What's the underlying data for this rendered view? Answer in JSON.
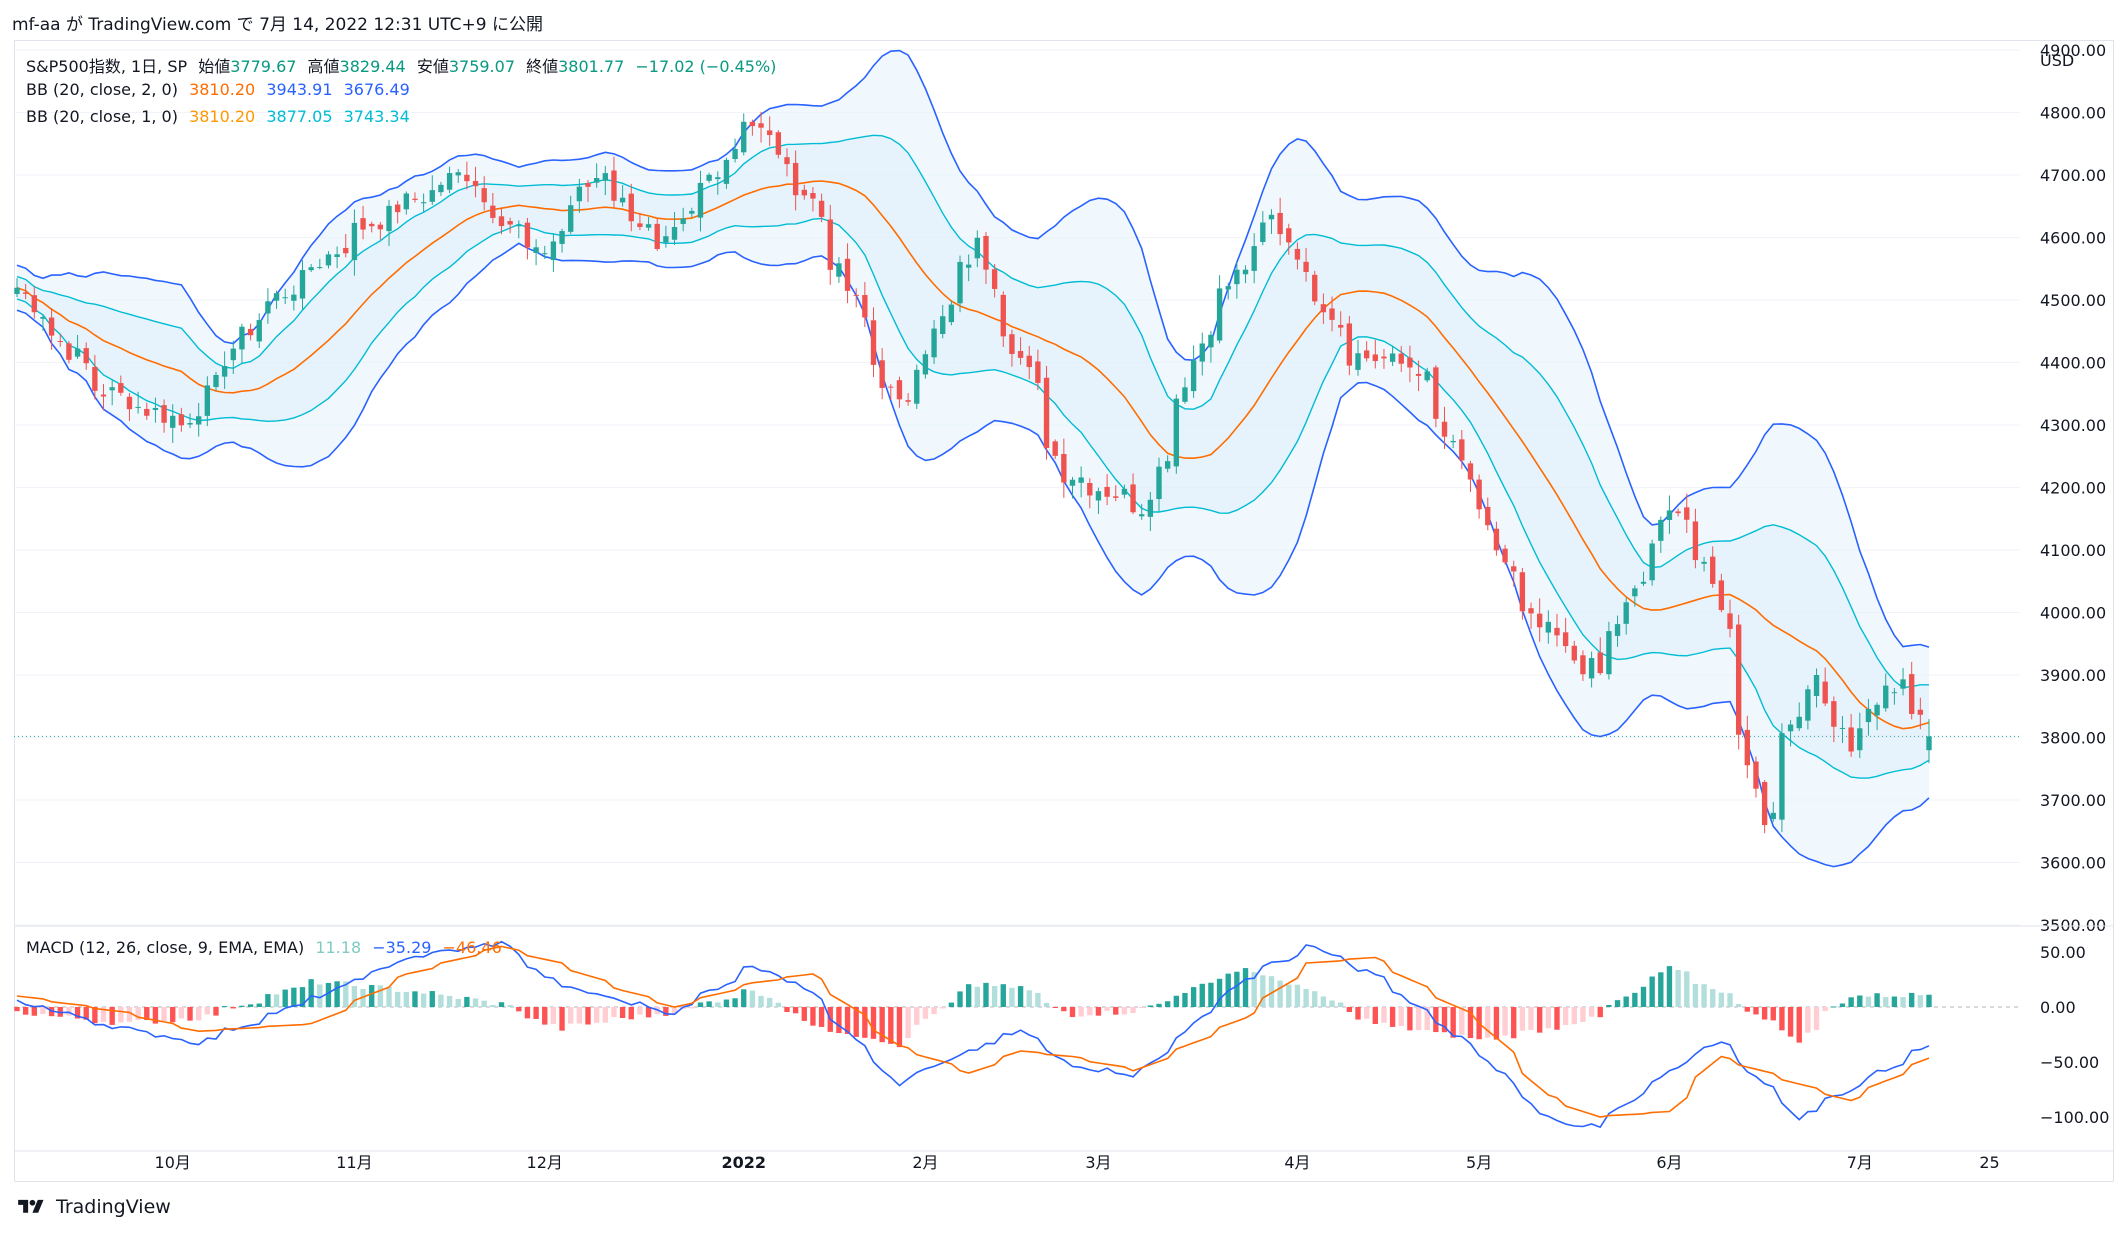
{
  "header": {
    "publish_line": "mf-aa が TradingView.com で 7月 14, 2022 12:31 UTC+9 に公開"
  },
  "legend": {
    "symbol": "S&P500指数, 1日, SP",
    "open_label": "始値",
    "open": "3779.67",
    "high_label": "高値",
    "high": "3829.44",
    "low_label": "安値",
    "low": "3759.07",
    "close_label": "終値",
    "close": "3801.77",
    "change": "−17.02 (−0.45%)",
    "bb2_name": "BB (20, close, 2, 0)",
    "bb2_basis": "3810.20",
    "bb2_upper": "3943.91",
    "bb2_lower": "3676.49",
    "bb1_name": "BB (20, close, 1, 0)",
    "bb1_basis": "3810.20",
    "bb1_upper": "3877.05",
    "bb1_lower": "3743.34",
    "macd_name": "MACD (12, 26, close, 9, EMA, EMA)",
    "macd_hist": "11.18",
    "macd_line": "−35.29",
    "macd_signal": "−46.46"
  },
  "footer": {
    "brand": "TradingView"
  },
  "colors": {
    "up": "#26a69a",
    "down": "#ef5350",
    "bb_outer": "#2962ff",
    "bb_inner": "#00bcd4",
    "basis": "#ff6d00",
    "hist_up_strong": "#26a69a",
    "hist_up_weak": "#b2dfdb",
    "hist_down_strong": "#ff5252",
    "hist_down_weak": "#ffcdd2",
    "macd_line": "#2962ff",
    "signal_line": "#ff6d00",
    "fill": "#e3f2fd"
  },
  "chart_data": [
    {
      "type": "candlestick",
      "currency": "USD",
      "ylim": [
        3500,
        4900
      ],
      "y_ticks": [
        "4900.00",
        "4800.00",
        "4700.00",
        "4600.00",
        "4500.00",
        "4400.00",
        "4300.00",
        "4200.00",
        "4100.00",
        "4000.00",
        "3900.00",
        "3800.00",
        "3700.00",
        "3600.00",
        "3500.00"
      ],
      "x_labels": [
        "10月",
        "11月",
        "12月",
        "2022",
        "2月",
        "3月",
        "4月",
        "5月",
        "6月",
        "7月",
        "25"
      ],
      "close_anchors": [
        [
          "2021-09-07",
          4520
        ],
        [
          "2021-09-20",
          4358
        ],
        [
          "2021-10-04",
          4300
        ],
        [
          "2021-10-15",
          4471
        ],
        [
          "2021-11-01",
          4613
        ],
        [
          "2021-11-18",
          4704
        ],
        [
          "2021-11-30",
          4567
        ],
        [
          "2021-12-10",
          4712
        ],
        [
          "2021-12-20",
          4568
        ],
        [
          "2022-01-03",
          4796
        ],
        [
          "2022-01-13",
          4659
        ],
        [
          "2022-01-27",
          4326
        ],
        [
          "2022-02-09",
          4587
        ],
        [
          "2022-02-23",
          4225
        ],
        [
          "2022-03-08",
          4170
        ],
        [
          "2022-03-18",
          4463
        ],
        [
          "2022-03-29",
          4631
        ],
        [
          "2022-04-11",
          4413
        ],
        [
          "2022-04-21",
          4393
        ],
        [
          "2022-05-09",
          3991
        ],
        [
          "2022-05-20",
          3901
        ],
        [
          "2022-06-02",
          4176
        ],
        [
          "2022-06-09",
          4017
        ],
        [
          "2022-06-16",
          3667
        ],
        [
          "2022-06-24",
          3912
        ],
        [
          "2022-06-30",
          3785
        ],
        [
          "2022-07-08",
          3899
        ],
        [
          "2022-07-13",
          3802
        ]
      ],
      "last": {
        "open": 3779.67,
        "high": 3829.44,
        "low": 3759.07,
        "close": 3801.77
      }
    },
    {
      "type": "macd",
      "ylim": [
        -130,
        70
      ],
      "y_ticks": [
        "50.00",
        "0.00",
        "−50.00",
        "−100.00"
      ],
      "macd_anchors": [
        [
          "2021-09-07",
          5
        ],
        [
          "2021-09-24",
          -20
        ],
        [
          "2021-10-06",
          -32
        ],
        [
          "2021-10-25",
          8
        ],
        [
          "2021-11-09",
          45
        ],
        [
          "2021-11-24",
          58
        ],
        [
          "2021-12-03",
          20
        ],
        [
          "2021-12-14",
          5
        ],
        [
          "2021-12-22",
          -5
        ],
        [
          "2022-01-04",
          38
        ],
        [
          "2022-01-13",
          15
        ],
        [
          "2022-01-27",
          -70
        ],
        [
          "2022-02-08",
          -40
        ],
        [
          "2022-02-16",
          -22
        ],
        [
          "2022-02-24",
          -52
        ],
        [
          "2022-03-07",
          -62
        ],
        [
          "2022-03-24",
          25
        ],
        [
          "2022-04-04",
          55
        ],
        [
          "2022-04-14",
          30
        ],
        [
          "2022-05-02",
          -45
        ],
        [
          "2022-05-12",
          -100
        ],
        [
          "2022-05-20",
          -110
        ],
        [
          "2022-06-01",
          -60
        ],
        [
          "2022-06-09",
          -30
        ],
        [
          "2022-06-22",
          -100
        ],
        [
          "2022-06-30",
          -75
        ],
        [
          "2022-07-13",
          -35.29
        ]
      ],
      "signal_anchors": [
        [
          "2021-09-07",
          10
        ],
        [
          "2021-09-24",
          -5
        ],
        [
          "2021-10-06",
          -22
        ],
        [
          "2021-10-25",
          -15
        ],
        [
          "2021-11-09",
          30
        ],
        [
          "2021-11-24",
          55
        ],
        [
          "2021-12-03",
          40
        ],
        [
          "2021-12-14",
          15
        ],
        [
          "2021-12-22",
          0
        ],
        [
          "2022-01-04",
          22
        ],
        [
          "2022-01-13",
          30
        ],
        [
          "2022-01-27",
          -35
        ],
        [
          "2022-02-08",
          -60
        ],
        [
          "2022-02-16",
          -40
        ],
        [
          "2022-02-24",
          -45
        ],
        [
          "2022-03-07",
          -58
        ],
        [
          "2022-03-24",
          -10
        ],
        [
          "2022-04-04",
          40
        ],
        [
          "2022-04-14",
          45
        ],
        [
          "2022-05-02",
          -15
        ],
        [
          "2022-05-12",
          -80
        ],
        [
          "2022-05-20",
          -100
        ],
        [
          "2022-06-01",
          -95
        ],
        [
          "2022-06-09",
          -45
        ],
        [
          "2022-06-22",
          -70
        ],
        [
          "2022-06-30",
          -85
        ],
        [
          "2022-07-13",
          -46.46
        ]
      ],
      "last_hist": 11.18
    }
  ]
}
